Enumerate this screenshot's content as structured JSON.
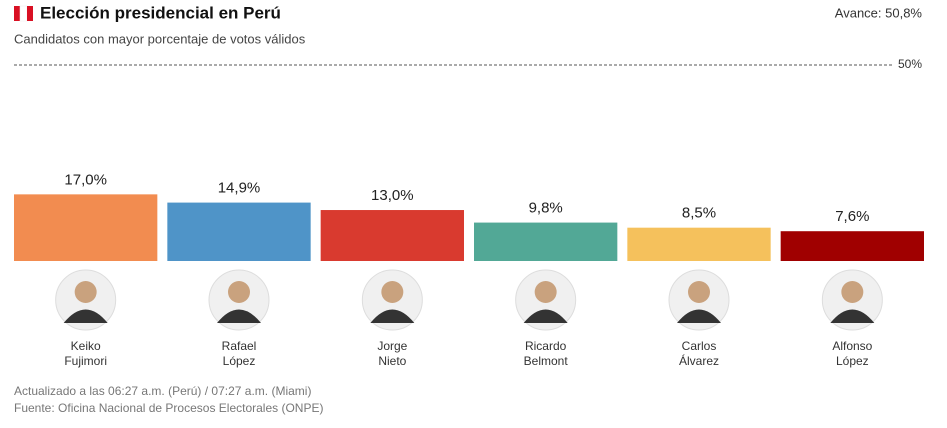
{
  "chart_data": {
    "type": "bar",
    "title": "Elección presidencial en Perú",
    "subtitle": "Candidatos con mayor porcentaje de votos válidos",
    "progress": "Avance: 50,8%",
    "categories": [
      "Keiko\nFujimori",
      "Rafael\nLópez",
      "Jorge\nNieto",
      "Ricardo\nBelmont",
      "Carlos\nÁlvarez",
      "Alfonso\nLópez"
    ],
    "values": [
      17.0,
      14.9,
      13.0,
      9.8,
      8.5,
      7.6
    ],
    "value_labels": [
      "17,0%",
      "14,9%",
      "13,0%",
      "9,8%",
      "8,5%",
      "7,6%"
    ],
    "colors": [
      "#f28c50",
      "#4f94c8",
      "#d93a2f",
      "#52a896",
      "#f5c15c",
      "#a00000"
    ],
    "ylim": [
      0,
      50
    ],
    "yticks": [
      {
        "value": 50,
        "label": "50%"
      }
    ],
    "footnotes": [
      "Actualizado a las 06:27 a.m. (Perú) / 07:27 a.m. (Miami)",
      "Fuente: Oficina Nacional de Procesos Electorales (ONPE)"
    ]
  }
}
